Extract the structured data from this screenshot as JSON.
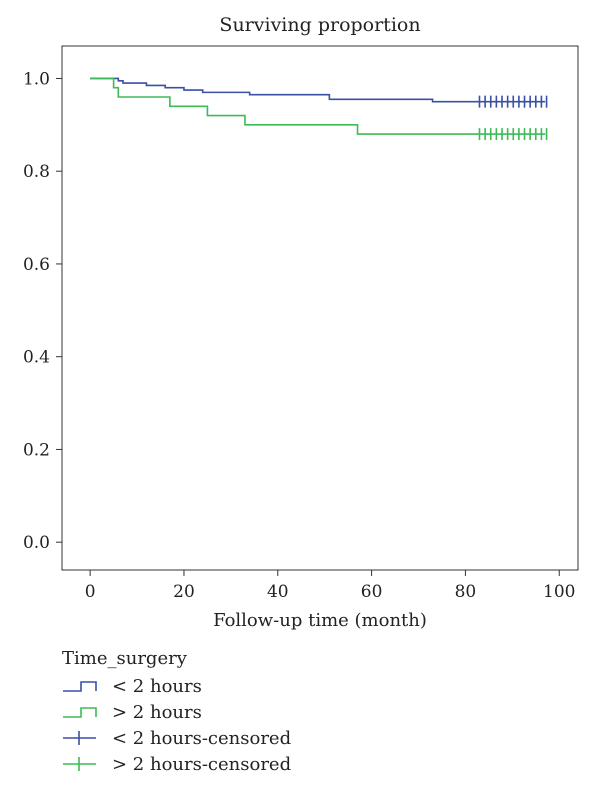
{
  "chart_data": {
    "type": "line",
    "title": "Surviving proportion",
    "xlabel": "Follow-up time (month)",
    "ylabel": "",
    "xlim": [
      -6,
      104
    ],
    "ylim": [
      -0.06,
      1.07
    ],
    "x_ticks": [
      0,
      20,
      40,
      60,
      80,
      100
    ],
    "y_ticks": [
      0.0,
      0.2,
      0.4,
      0.6,
      0.8,
      1.0
    ],
    "x_tick_labels": [
      "0",
      "20",
      "40",
      "60",
      "80",
      "100"
    ],
    "y_tick_labels": [
      "0.0",
      "0.2",
      "0.4",
      "0.6",
      "0.8",
      "1.0"
    ],
    "grid": false,
    "legend_title": "Time_surgery",
    "series": [
      {
        "name": "< 2 hours",
        "color": "#3a4fa6",
        "steps": [
          [
            0,
            1.0
          ],
          [
            6,
            0.995
          ],
          [
            7,
            0.99
          ],
          [
            12,
            0.985
          ],
          [
            16,
            0.98
          ],
          [
            20,
            0.975
          ],
          [
            24,
            0.97
          ],
          [
            34,
            0.965
          ],
          [
            51,
            0.955
          ],
          [
            73,
            0.95
          ],
          [
            97,
            0.95
          ]
        ],
        "censored_name": "< 2 hours-censored",
        "censored_x": [
          83,
          84.2,
          85.4,
          86.6,
          87.8,
          89,
          90.2,
          91.4,
          92.6,
          93.8,
          95,
          96.2,
          97.3
        ]
      },
      {
        "name": "> 2 hours",
        "color": "#3dbb56",
        "steps": [
          [
            0,
            1.0
          ],
          [
            5,
            0.98
          ],
          [
            6,
            0.96
          ],
          [
            17,
            0.94
          ],
          [
            25,
            0.92
          ],
          [
            33,
            0.9
          ],
          [
            57,
            0.88
          ],
          [
            97,
            0.88
          ]
        ],
        "censored_name": "> 2 hours-censored",
        "censored_x": [
          83,
          84.2,
          85.4,
          86.6,
          87.8,
          89,
          90.2,
          91.4,
          92.6,
          93.8,
          95,
          96.2,
          97.3
        ]
      }
    ]
  }
}
